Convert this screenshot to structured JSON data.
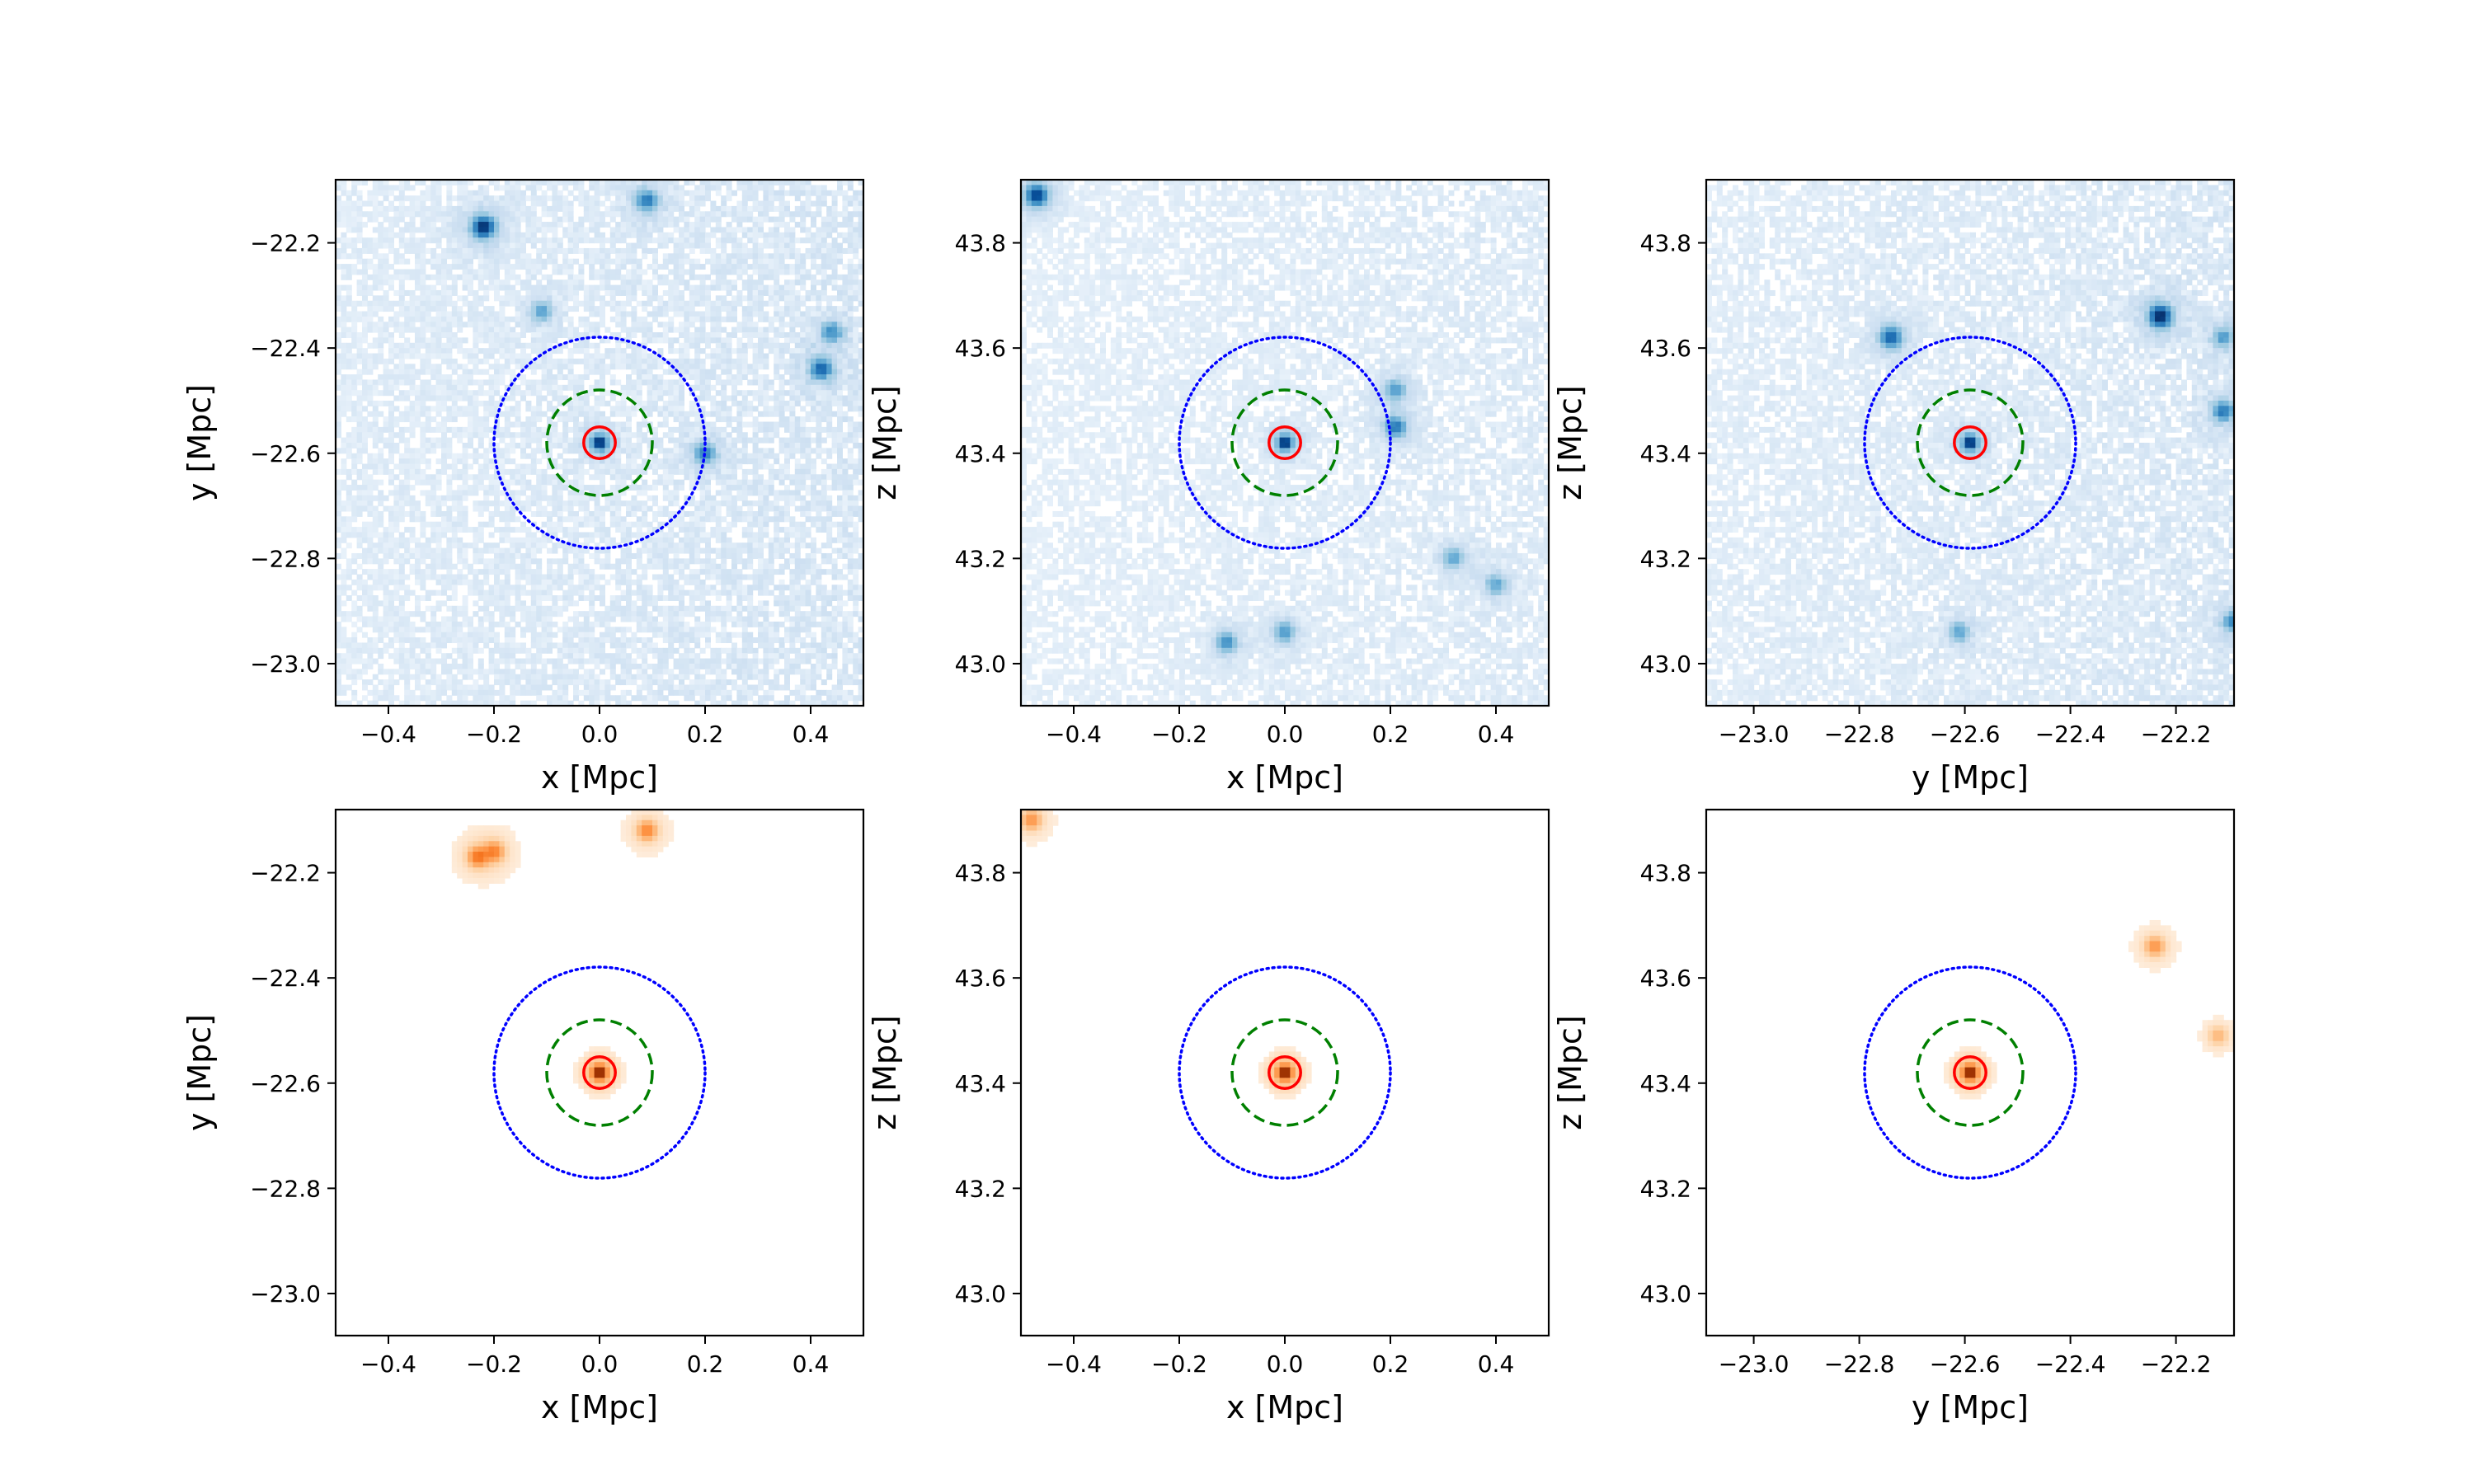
{
  "figure": {
    "description_type": "multi-panel density projection",
    "colors": {
      "dm_map": "#1f5fa8",
      "stars_map": "#e8823a",
      "inner_circle": "#ff0000",
      "middle_circle": "#008000",
      "outer_circle": "#0000ff"
    }
  },
  "chart_data": [
    {
      "type": "heatmap",
      "panel": "top-left",
      "colormap": "Blues",
      "xlabel": "x [Mpc]",
      "ylabel": "y [Mpc]",
      "xlim": [
        -0.5,
        0.5
      ],
      "ylim": [
        -23.08,
        -22.08
      ],
      "xticks": [
        -0.4,
        -0.2,
        0.0,
        0.2,
        0.4
      ],
      "xtick_labels": [
        "−0.4",
        "−0.2",
        "0.0",
        "0.2",
        "0.4"
      ],
      "yticks": [
        -22.2,
        -22.4,
        -22.6,
        -22.8,
        -23.0
      ],
      "ytick_labels": [
        "−22.2",
        "−22.4",
        "−22.6",
        "−22.8",
        "−23.0"
      ],
      "center": [
        0.0,
        -22.58
      ],
      "circle_radii": [
        0.03,
        0.1,
        0.2
      ],
      "blobs": [
        [
          -0.22,
          -22.17,
          0.9
        ],
        [
          0.09,
          -22.12,
          0.5
        ],
        [
          0.42,
          -22.44,
          0.6
        ],
        [
          0.44,
          -22.37,
          0.4
        ],
        [
          0.2,
          -22.6,
          0.45
        ],
        [
          -0.11,
          -22.33,
          0.3
        ]
      ],
      "diffuse_weight": 0.5
    },
    {
      "type": "heatmap",
      "panel": "top-middle",
      "colormap": "Blues",
      "xlabel": "x [Mpc]",
      "ylabel": "z [Mpc]",
      "xlim": [
        -0.5,
        0.5
      ],
      "ylim": [
        42.92,
        43.92
      ],
      "xticks": [
        -0.4,
        -0.2,
        0.0,
        0.2,
        0.4
      ],
      "xtick_labels": [
        "−0.4",
        "−0.2",
        "0.0",
        "0.2",
        "0.4"
      ],
      "yticks": [
        43.8,
        43.6,
        43.4,
        43.2,
        43.0
      ],
      "ytick_labels": [
        "43.8",
        "43.6",
        "43.4",
        "43.2",
        "43.0"
      ],
      "center": [
        0.0,
        43.42
      ],
      "circle_radii": [
        0.03,
        0.1,
        0.2
      ],
      "blobs": [
        [
          -0.47,
          43.89,
          0.8
        ],
        [
          0.21,
          43.45,
          0.5
        ],
        [
          0.21,
          43.52,
          0.35
        ],
        [
          -0.11,
          43.04,
          0.4
        ],
        [
          0.0,
          43.06,
          0.35
        ],
        [
          0.4,
          43.15,
          0.3
        ],
        [
          0.32,
          43.2,
          0.3
        ]
      ],
      "diffuse_weight": 0.35
    },
    {
      "type": "heatmap",
      "panel": "top-right",
      "colormap": "Blues",
      "xlabel": "y [Mpc]",
      "ylabel": "z [Mpc]",
      "xlim": [
        -23.09,
        -22.09
      ],
      "ylim": [
        42.92,
        43.92
      ],
      "xticks": [
        -23.0,
        -22.8,
        -22.6,
        -22.4,
        -22.2
      ],
      "xtick_labels": [
        "−23.0",
        "−22.8",
        "−22.6",
        "−22.4",
        "−22.2"
      ],
      "yticks": [
        43.8,
        43.6,
        43.4,
        43.2,
        43.0
      ],
      "ytick_labels": [
        "43.8",
        "43.6",
        "43.4",
        "43.2",
        "43.0"
      ],
      "center": [
        -22.59,
        43.42
      ],
      "circle_radii": [
        0.03,
        0.1,
        0.2
      ],
      "blobs": [
        [
          -22.23,
          43.66,
          0.95
        ],
        [
          -22.74,
          43.62,
          0.6
        ],
        [
          -22.11,
          43.48,
          0.5
        ],
        [
          -22.11,
          43.62,
          0.35
        ],
        [
          -22.09,
          43.08,
          0.45
        ],
        [
          -22.61,
          43.06,
          0.3
        ]
      ],
      "diffuse_weight": 0.45
    },
    {
      "type": "heatmap",
      "panel": "bottom-left",
      "colormap": "Oranges",
      "xlabel": "x [Mpc]",
      "ylabel": "y [Mpc]",
      "xlim": [
        -0.5,
        0.5
      ],
      "ylim": [
        -23.08,
        -22.08
      ],
      "xticks": [
        -0.4,
        -0.2,
        0.0,
        0.2,
        0.4
      ],
      "xtick_labels": [
        "−0.4",
        "−0.2",
        "0.0",
        "0.2",
        "0.4"
      ],
      "yticks": [
        -22.2,
        -22.4,
        -22.6,
        -22.8,
        -23.0
      ],
      "ytick_labels": [
        "−22.2",
        "−22.4",
        "−22.6",
        "−22.8",
        "−23.0"
      ],
      "center": [
        0.0,
        -22.58
      ],
      "circle_radii": [
        0.03,
        0.1,
        0.2
      ],
      "blobs": [
        [
          -0.23,
          -22.17,
          0.35
        ],
        [
          -0.2,
          -22.16,
          0.3
        ],
        [
          0.09,
          -22.12,
          0.3
        ]
      ],
      "diffuse_weight": 0.0
    },
    {
      "type": "heatmap",
      "panel": "bottom-middle",
      "colormap": "Oranges",
      "xlabel": "x [Mpc]",
      "ylabel": "z [Mpc]",
      "xlim": [
        -0.5,
        0.5
      ],
      "ylim": [
        42.92,
        43.92
      ],
      "xticks": [
        -0.4,
        -0.2,
        0.0,
        0.2,
        0.4
      ],
      "xtick_labels": [
        "−0.4",
        "−0.2",
        "0.0",
        "0.2",
        "0.4"
      ],
      "yticks": [
        43.8,
        43.6,
        43.4,
        43.2,
        43.0
      ],
      "ytick_labels": [
        "43.8",
        "43.6",
        "43.4",
        "43.2",
        "43.0"
      ],
      "center": [
        0.0,
        43.42
      ],
      "circle_radii": [
        0.03,
        0.1,
        0.2
      ],
      "blobs": [
        [
          -0.48,
          43.9,
          0.25
        ]
      ],
      "diffuse_weight": 0.0
    },
    {
      "type": "heatmap",
      "panel": "bottom-right",
      "colormap": "Oranges",
      "xlabel": "y [Mpc]",
      "ylabel": "z [Mpc]",
      "xlim": [
        -23.09,
        -22.09
      ],
      "ylim": [
        42.92,
        43.92
      ],
      "xticks": [
        -23.0,
        -22.8,
        -22.6,
        -22.4,
        -22.2
      ],
      "xtick_labels": [
        "−23.0",
        "−22.8",
        "−22.6",
        "−22.4",
        "−22.2"
      ],
      "yticks": [
        43.8,
        43.6,
        43.4,
        43.2,
        43.0
      ],
      "ytick_labels": [
        "43.8",
        "43.6",
        "43.4",
        "43.2",
        "43.0"
      ],
      "center": [
        -22.59,
        43.42
      ],
      "circle_radii": [
        0.03,
        0.1,
        0.2
      ],
      "blobs": [
        [
          -22.24,
          43.66,
          0.25
        ],
        [
          -22.12,
          43.49,
          0.15
        ]
      ],
      "diffuse_weight": 0.0
    }
  ]
}
